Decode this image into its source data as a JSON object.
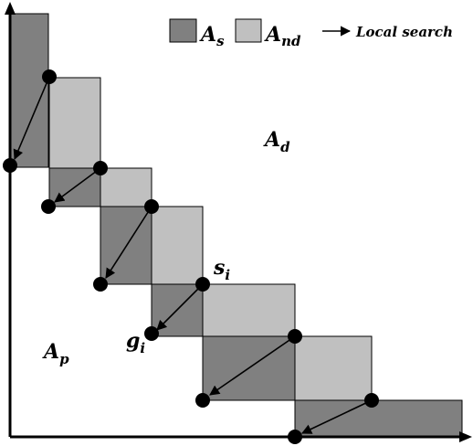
{
  "colors": {
    "dominating": "#808080",
    "non_dominating": "#c0c0c0",
    "outline": "#000000",
    "background": "#ffffff"
  },
  "legend": {
    "dominating_label": "A",
    "dominating_sub": "s",
    "non_dominating_label": "A",
    "non_dominating_sub": "nd",
    "local_search_label": "Local search"
  },
  "regions": {
    "dominated_label": "A",
    "dominated_sub": "d",
    "potential_label": "A",
    "potential_sub": "p"
  },
  "points": {
    "seed_label": "s",
    "seed_sub": "i",
    "goal_label": "g",
    "goal_sub": "i"
  }
}
